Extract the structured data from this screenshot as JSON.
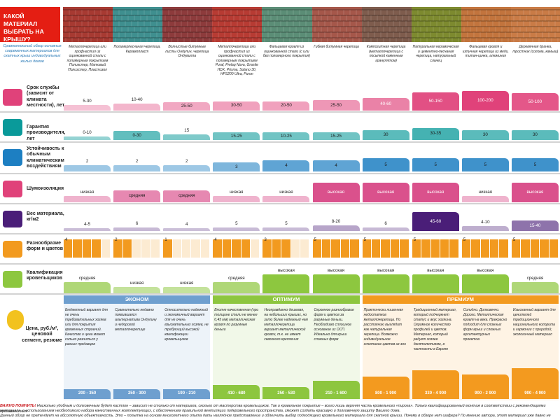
{
  "header": {
    "title": "КАКОЙ МАТЕРИАЛ ВЫБРАТЬ НА КРЫШУ?",
    "intro": "Сравнительный обзор основных современных материалов для скатных крыш индивидуальных жилых домов"
  },
  "materials": [
    {
      "desc": "Металлочерепица или профнастил из оцинкованной стали с полимерным покрытием Полиэстер, Матовый Полиэстер, Пластизол",
      "color": "#a73a32"
    },
    {
      "desc": "Полимерпесчаная черепица, Керамопласт",
      "color": "#3f8f8f"
    },
    {
      "desc": "Волнистые битумные листы Ондулин, черепица Ондувилла",
      "color": "#8d3b3c"
    },
    {
      "desc": "Металлочерепица или профнастил из оцинкованной стали с полимерным покрытием Pural, Prelaq Nova, Granite HDX, Prisma, Solano 30, HPS200 Ultra, Puron",
      "color": "#b73b33"
    },
    {
      "desc": "Фальцевая кровля из оцинкованной стали (с или без полимерного покрытия)",
      "color": "#5b8d76"
    },
    {
      "desc": "Гибкая битумная черепица",
      "color": "#a5574a"
    },
    {
      "desc": "Композитная черепица (металлочерепица с посыпкой каменным гранулятом)",
      "color": "#7e5c4d"
    },
    {
      "desc": "Натуральная керамическая и цементно-песчаная черепица, натуральный сланец",
      "color": "#7d8a2f"
    },
    {
      "desc": "Фальцевая кровля и штучная черепица из меди, титан-цинка, алюминия",
      "color": "#c2743d"
    },
    {
      "desc": "Деревянная дранка, тростник (солома, камыш)",
      "color": "#c97b46"
    }
  ],
  "rows": {
    "service_life": {
      "label": "Срок службы (зависит от климата местности), лет",
      "values": [
        "5-30",
        "10-40",
        "25-50",
        "30-50",
        "20-50",
        "25-50",
        "40-60",
        "50-150",
        "100-200",
        "50-100"
      ]
    },
    "warranty": {
      "label": "Гарантия производителя, лет",
      "values": [
        "0-10",
        "0-30",
        "15",
        "15-25",
        "10-25",
        "15-25",
        "30",
        "30-35",
        "30",
        "30"
      ]
    },
    "resistance": {
      "label": "Устойчивость к обычным климатическим воздействиям",
      "values": [
        "2",
        "2",
        "2",
        "3",
        "4",
        "4",
        "5",
        "5",
        "5",
        "5"
      ]
    },
    "noise": {
      "label": "Шумоизоляция",
      "values": [
        "низкая",
        "средняя",
        "средняя",
        "низкая",
        "низкая",
        "высокая",
        "высокая",
        "высокая",
        "низкая",
        "высокая"
      ]
    },
    "weight": {
      "label": "Вес материала, кг/м2",
      "values": [
        "4-5",
        "6",
        "4",
        "5",
        "5",
        "8-20",
        "6",
        "45-60",
        "4-10",
        "15-40"
      ]
    },
    "variety": {
      "label": "Разнообразие форм и цветов",
      "values": [
        "4",
        "2",
        "1",
        "4",
        "3",
        "5",
        "5",
        "5",
        "5",
        "5"
      ]
    },
    "skill": {
      "label": "Квалификация кровельщиков",
      "values": [
        "средняя",
        "низкая",
        "низкая",
        "средняя",
        "высокая",
        "высокая",
        "высокая",
        "высокая",
        "высокая",
        "средняя"
      ]
    }
  },
  "price": {
    "label": "Цена, руб./м², ценовой сегмент, резюме",
    "segments": [
      "ЭКОНОМ",
      "ОПТИМУМ",
      "ПРЕМИУМ"
    ],
    "desc": [
      "Бюджетный вариант для не очень требовательных хозяев или для покрытия временных строений. Качество и цена может сильно разниться у разных продавцов",
      "Сравнительно недавно появившаяся альтернатива Ондулину и недорогой металлочерепице",
      "Относительно надежный и экономичный вариант для не очень взыскательных хозяев, не требующий высокой квалификации кровельщиков",
      "Вполне качественная (при толщине стали не менее 0,45 мм) металлическая кровля по разумные деньги",
      "Неоправданно дешевая, на небольших крышах, но зато более надежный чем металлочерепица вариант металлической кровли, т.к. не имеет сквозного крепления",
      "Огромное разнообразие форм и цветов за разумные деньги. Необходимо сплошное основание из ОСП. Идеально для крыш сложных форм",
      "Практически лишенная недостатков металлочерепица. По расстоянию выглядит как натуральная черепица. Возможно индивидуальное сочетание цветов из зон",
      "Традиционный материал, который подчеркнет статус и вкус хозяина. Огромное количество профилей и цветов. Материал, который радует хозяев десятилетиями, в частности в Европе",
      "Солидно. Долговечно. Дорого. Металлическая кровля на века. Прекрасно подходит для сложных форм крыш и сложных архитектурных проектов.",
      "Изысканный вариант для ценителей традиционного национального колорита и гармонии с природой; экологичный материал"
    ],
    "values": [
      "200 - 350",
      "250 - 300",
      "190 - 210",
      "410 - 680",
      "250 - 530",
      "210 - 1 600",
      "800 - 1 900",
      "330 - 4 900",
      "900 - 2 900",
      "900 - 4 900"
    ]
  },
  "footer": {
    "important_label": "ВАЖНО ПОМНИТЬ!",
    "line1": "Насколько удобным и долговечным будет кастлон – зависит не столько от материала, сколько от мастерства кровельщиков. Так и кровельное покрытие – всего лишь верхняя часть кровельного «пирога». Только квалифицированный монтаж в соответствии с рекомендациями производителя",
    "line2": "материала, с использованием необходимого набора качественных комплектующих, с обеспечением правильной вентиляции подкровельного пространства, сможет создать красивую и долговечную защиту Вашего дома.",
    "line3": "Данный обзор не претендует на абсолютную объективность. Это – попытка на основе многолетнего опыта дать наглядное представление и облегчить выбор подходящего кровельного материала для скатной крыши. Почему в обзоре нет шифера? По мнению автора, этот материал уже давно не",
    "line4": "вписывается в представление о современном и эстетичном материале. © Мир Кровли, 2012"
  },
  "colors": {
    "red": "#e41e13",
    "pink": "#e0427a",
    "teal": "#0a9a9a",
    "blue": "#1d7fc2",
    "purple": "#4a1e78",
    "orange": "#f29a1f",
    "green": "#8dc73f",
    "econ": "#6e9fcf",
    "opt": "#8dc63f",
    "prem": "#f39a1f"
  }
}
